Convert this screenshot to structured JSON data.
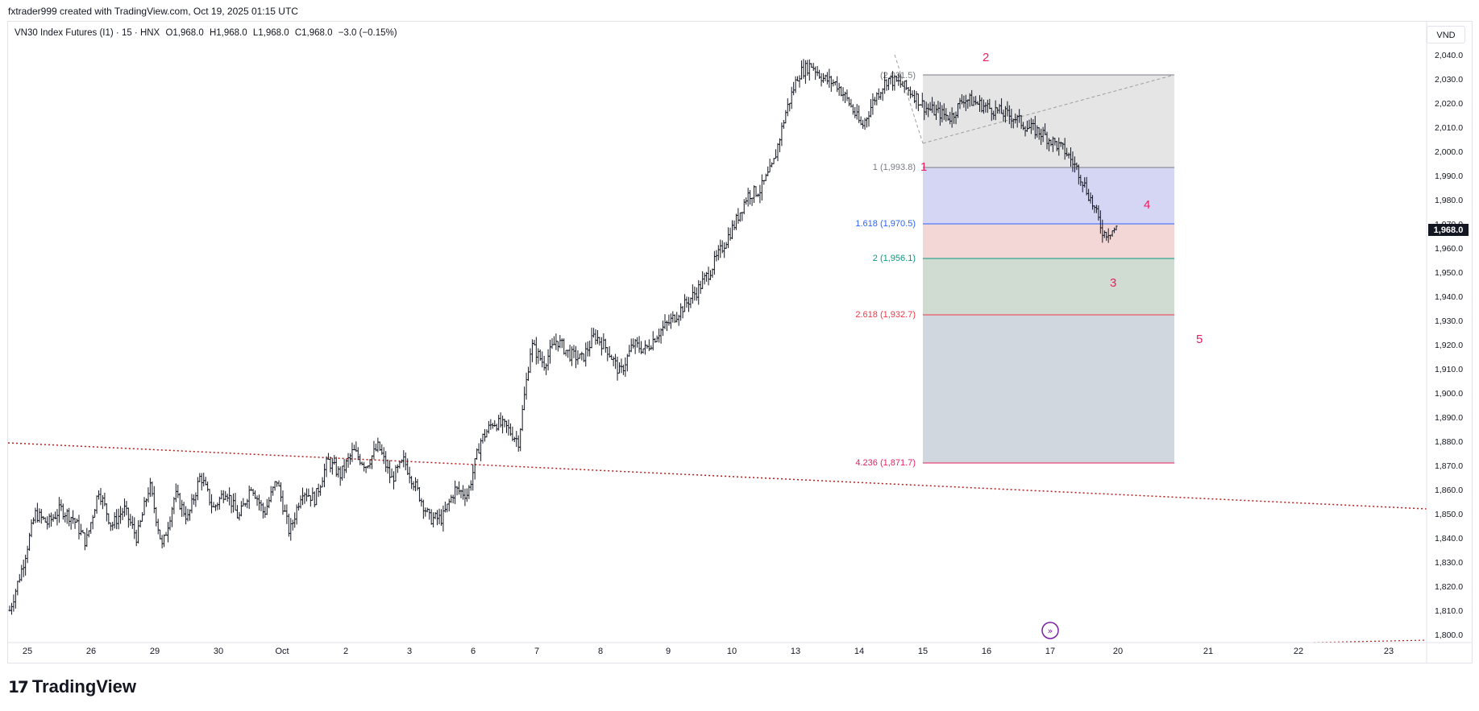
{
  "header": {
    "credit": "fxtrader999 created with TradingView.com, Oct 19, 2025 01:15 UTC"
  },
  "symbol": {
    "name": "VN30 Index Futures (I1) · 15 · HNX",
    "open": "O1,968.0",
    "high": "H1,968.0",
    "low": "L1,968.0",
    "close": "C1,968.0",
    "change": "−3.0 (−0.15%)"
  },
  "currency": "VND",
  "logo": "TradingView",
  "colors": {
    "candle": "#131722",
    "price_label_bg": "#131722",
    "wave_label": "#e91e63",
    "trendline": "#b71c1c"
  },
  "chart_data": {
    "type": "ohlc",
    "y_axis": {
      "ticks": [
        "2,040.0",
        "2,030.0",
        "2,020.0",
        "2,010.0",
        "2,000.0",
        "1,990.0",
        "1,980.0",
        "1,970.0",
        "1,960.0",
        "1,950.0",
        "1,940.0",
        "1,930.0",
        "1,920.0",
        "1,910.0",
        "1,900.0",
        "1,890.0",
        "1,880.0",
        "1,870.0",
        "1,860.0",
        "1,850.0",
        "1,840.0",
        "1,830.0",
        "1,820.0",
        "1,810.0",
        "1,800.0"
      ],
      "range": [
        1800,
        2040
      ]
    },
    "x_axis": {
      "ticks": [
        "25",
        "26",
        "29",
        "30",
        "Oct",
        "2",
        "3",
        "6",
        "7",
        "8",
        "9",
        "10",
        "13",
        "14",
        "15",
        "16",
        "17",
        "20",
        "21",
        "22",
        "23"
      ]
    },
    "current_price": "1,968.0",
    "price_path": [
      1810,
      1828,
      1850,
      1846,
      1852,
      1848,
      1838,
      1860,
      1845,
      1852,
      1840,
      1862,
      1836,
      1858,
      1848,
      1866,
      1852,
      1860,
      1848,
      1862,
      1850,
      1864,
      1842,
      1860,
      1856,
      1872,
      1866,
      1876,
      1870,
      1878,
      1864,
      1872,
      1860,
      1848,
      1848,
      1860,
      1858,
      1880,
      1888,
      1886,
      1880,
      1920,
      1912,
      1922,
      1916,
      1914,
      1924,
      1918,
      1908,
      1920,
      1918,
      1925,
      1930,
      1936,
      1942,
      1950,
      1960,
      1970,
      1982,
      1984,
      1994,
      2016,
      2032,
      2036,
      2030,
      2028,
      2020,
      2010,
      2022,
      2030,
      2028,
      2024,
      2018,
      2016,
      2014,
      2022,
      2020,
      2018,
      2016,
      2014,
      2010,
      2008,
      2004,
      2000,
      1992,
      1980,
      1966,
      1968
    ],
    "fibonacci": [
      {
        "label": "1 (1,993.8)",
        "color": "#787b86"
      },
      {
        "label": "1.618 (1,970.5)",
        "color": "#2196f3"
      },
      {
        "label": "2 (1,956.1)",
        "color": "#089981"
      },
      {
        "label": "2.618 (1,932.7)",
        "color": "#f23645"
      },
      {
        "label": "4.236 (1,871.7)",
        "color": "#e91e63"
      }
    ],
    "fib_top_label": "(2,031.5)",
    "wave_labels": [
      "1",
      "2",
      "3",
      "4",
      "5"
    ]
  }
}
